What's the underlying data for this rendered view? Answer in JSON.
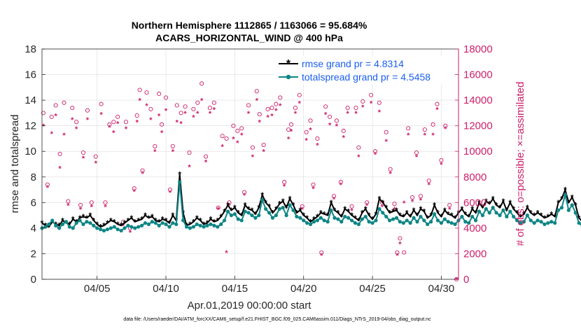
{
  "chart_data": {
    "type": "line",
    "title_line1": "Northern Hemisphere 1112865 / 1163066 = 95.684%",
    "title_line2": "ACARS_HORIZONTAL_WIND @ 400 hPa",
    "xlabel": "Apr.01,2019 00:00:00 start",
    "ylabel_left": "rmse and totalspread",
    "ylabel_right": "# of obs: o=possible; ×=assimilated",
    "x_ticks": [
      "04/05",
      "04/10",
      "04/15",
      "04/20",
      "04/25",
      "04/30"
    ],
    "y_left_ticks": [
      "0",
      "2",
      "4",
      "6",
      "8",
      "10",
      "12",
      "14",
      "16",
      "18"
    ],
    "y_right_ticks": [
      "0",
      "2000",
      "4000",
      "6000",
      "8000",
      "10000",
      "12000",
      "14000",
      "16000",
      "18000"
    ],
    "xlim_days": [
      1.0,
      31.25
    ],
    "ylim_left": [
      0,
      18
    ],
    "ylim_right": [
      0,
      18000
    ],
    "footer": "data file: /Users/raeder/DAI/ATM_forcXX/CAM6_setup/f.e21.FHIST_BGC.f09_025.CAM6assim.011/Diags_NTrS_2019-04/obs_diag_output.nc",
    "legend": [
      {
        "label": "rmse grand pr = 4.8314",
        "color": "#000000"
      },
      {
        "label": "totalspread grand pr = 4.5458",
        "color": "#0e8585"
      }
    ],
    "x_start_day": 1.0,
    "x_step_days": 0.25,
    "series": [
      {
        "name": "rmse",
        "color": "#000000",
        "values": [
          4.4,
          4.2,
          4.1,
          4.5,
          4.3,
          4.2,
          4.6,
          4.4,
          4.3,
          4.7,
          4.5,
          4.8,
          4.9,
          4.8,
          5.0,
          4.6,
          4.3,
          4.1,
          4.2,
          4.4,
          4.6,
          4.5,
          4.3,
          4.2,
          4.4,
          4.6,
          4.8,
          4.5,
          4.6,
          4.7,
          5.0,
          4.8,
          4.9,
          4.6,
          4.5,
          4.7,
          4.6,
          4.4,
          5.0,
          4.6,
          8.2,
          5.2,
          4.2,
          4.3,
          4.5,
          4.8,
          4.6,
          4.3,
          4.4,
          4.7,
          4.5,
          4.6,
          4.9,
          5.3,
          5.8,
          5.4,
          5.6,
          5.2,
          5.0,
          5.8,
          5.5,
          5.4,
          5.1,
          5.6,
          6.6,
          6.0,
          5.7,
          5.2,
          5.5,
          5.9,
          6.1,
          5.6,
          6.3,
          5.8,
          5.2,
          5.4,
          5.0,
          4.8,
          4.5,
          4.7,
          4.9,
          5.2,
          5.1,
          5.0,
          6.0,
          5.4,
          5.2,
          4.9,
          5.5,
          5.3,
          5.0,
          4.8,
          4.6,
          5.2,
          5.5,
          5.0,
          4.7,
          5.1,
          6.3,
          6.0,
          5.6,
          5.2,
          5.3,
          5.4,
          5.0,
          4.9,
          5.2,
          4.9,
          5.4,
          5.0,
          5.5,
          5.3,
          4.8,
          5.0,
          5.8,
          5.2,
          4.9,
          5.4,
          5.1,
          5.0,
          4.8,
          5.2,
          5.5,
          5.1,
          4.9,
          5.5,
          5.2,
          6.0,
          5.6,
          6.1,
          5.9,
          6.3,
          5.8,
          5.6,
          6.1,
          5.4,
          6.0,
          5.5,
          5.2,
          4.9,
          5.1,
          5.6,
          5.2,
          5.0,
          5.2,
          5.0,
          4.8,
          4.9,
          5.1,
          4.9,
          6.0,
          6.3,
          7.0,
          6.0,
          6.4,
          5.8,
          4.8,
          4.5,
          4.6,
          4.6,
          4.4,
          4.3,
          4.5,
          4.6,
          4.4,
          4.3,
          4.5,
          4.6,
          4.7,
          4.8,
          4.6,
          4.5,
          4.7,
          4.8,
          4.5,
          5.0,
          4.8,
          4.6,
          5.1,
          4.7,
          4.9,
          5.2,
          4.6,
          5.8,
          5.2,
          5.0,
          4.9,
          4.7,
          4.8,
          5.0,
          4.8,
          4.7,
          4.9,
          4.6,
          4.8,
          5.0,
          4.7,
          4.9,
          4.6,
          4.8,
          4.5,
          4.7,
          4.6,
          4.8,
          4.5,
          4.4,
          4.6,
          4.8,
          4.7,
          4.5,
          5.0,
          4.8,
          4.7,
          5.0,
          5.1,
          4.6,
          4.9,
          4.7,
          4.9,
          5.0,
          4.4,
          4.2,
          4.1,
          4.2,
          4.3
        ]
      },
      {
        "name": "totalspread",
        "color": "#0e8585",
        "values": [
          4.0,
          4.1,
          4.3,
          4.6,
          4.2,
          4.0,
          4.3,
          4.5,
          4.1,
          4.0,
          4.4,
          4.6,
          4.3,
          4.5,
          4.4,
          4.2,
          4.0,
          3.9,
          3.8,
          3.9,
          4.0,
          4.1,
          3.9,
          3.8,
          4.0,
          4.2,
          4.1,
          4.0,
          4.1,
          4.2,
          4.4,
          4.3,
          4.5,
          4.4,
          4.2,
          4.4,
          4.3,
          4.1,
          4.4,
          4.3,
          7.6,
          4.6,
          4.1,
          4.0,
          4.1,
          4.3,
          4.2,
          4.1,
          4.2,
          4.3,
          4.2,
          4.1,
          4.3,
          4.6,
          5.3,
          5.0,
          5.1,
          4.7,
          4.6,
          5.3,
          5.2,
          5.0,
          4.8,
          5.0,
          6.2,
          5.5,
          5.2,
          4.8,
          5.0,
          5.5,
          5.6,
          5.0,
          5.8,
          5.4,
          4.9,
          4.8,
          4.6,
          4.4,
          4.3,
          4.5,
          4.6,
          4.8,
          4.6,
          4.5,
          5.4,
          4.8,
          4.7,
          4.5,
          4.9,
          4.8,
          4.6,
          4.4,
          4.3,
          4.7,
          4.9,
          4.5,
          4.4,
          4.6,
          5.5,
          5.2,
          4.9,
          4.6,
          4.7,
          4.8,
          4.5,
          4.4,
          4.6,
          4.4,
          4.8,
          4.5,
          4.9,
          4.6,
          4.3,
          4.5,
          5.1,
          4.6,
          4.4,
          4.7,
          4.5,
          4.4,
          4.3,
          4.6,
          4.9,
          4.5,
          4.4,
          4.9,
          4.6,
          5.3,
          5.0,
          5.5,
          5.2,
          5.6,
          5.2,
          5.0,
          5.4,
          4.9,
          5.3,
          4.9,
          4.6,
          4.4,
          4.5,
          5.0,
          4.6,
          4.4,
          4.6,
          4.5,
          4.3,
          4.4,
          4.5,
          4.4,
          5.4,
          5.6,
          6.6,
          5.4,
          5.8,
          5.2,
          4.4,
          4.2,
          4.3,
          4.2,
          4.1,
          4.0,
          4.2,
          4.2,
          4.1,
          4.0,
          4.1,
          4.2,
          4.3,
          4.4,
          4.2,
          4.1,
          4.3,
          4.4,
          4.1,
          4.5,
          4.4,
          4.2,
          4.6,
          4.3,
          4.4,
          4.6,
          4.2,
          5.2,
          4.7,
          4.5,
          4.4,
          4.3,
          4.3,
          4.5,
          4.3,
          4.2,
          4.4,
          4.2,
          4.3,
          4.5,
          4.2,
          4.4,
          4.2,
          4.3,
          4.1,
          4.3,
          4.2,
          4.3,
          4.1,
          4.0,
          4.2,
          4.3,
          4.3,
          4.1,
          4.5,
          4.3,
          4.2,
          4.5,
          4.6,
          4.2,
          4.4,
          4.2,
          4.4,
          4.5,
          4.1,
          4.8,
          4.9,
          4.8,
          4.9
        ]
      }
    ],
    "obs_counts": [
      {
        "day": 1.1,
        "possible": 13000,
        "assimilated": 12000
      },
      {
        "day": 1.4,
        "possible": 7400,
        "assimilated": 7200
      },
      {
        "day": 1.7,
        "possible": 12700,
        "assimilated": 11400
      },
      {
        "day": 2.0,
        "possible": 13600,
        "assimilated": 12800
      },
      {
        "day": 2.3,
        "possible": 9800,
        "assimilated": 8700
      },
      {
        "day": 2.6,
        "possible": 13800,
        "assimilated": 11300
      },
      {
        "day": 2.9,
        "possible": 6100,
        "assimilated": 5800
      },
      {
        "day": 3.2,
        "possible": 13400,
        "assimilated": 12500
      },
      {
        "day": 3.5,
        "possible": 12300,
        "assimilated": 11800
      },
      {
        "day": 3.8,
        "possible": 5800,
        "assimilated": 5500
      },
      {
        "day": 4.0,
        "possible": 9900,
        "assimilated": 9500
      },
      {
        "day": 4.3,
        "possible": 13200,
        "assimilated": 12500
      },
      {
        "day": 4.6,
        "possible": 6000,
        "assimilated": 5700
      },
      {
        "day": 4.9,
        "possible": 9600,
        "assimilated": 9100
      },
      {
        "day": 5.3,
        "possible": 13700,
        "assimilated": 12900
      },
      {
        "day": 5.6,
        "possible": 6000,
        "assimilated": 5700
      },
      {
        "day": 5.9,
        "possible": 12100,
        "assimilated": 11900
      },
      {
        "day": 6.2,
        "possible": 12300,
        "assimilated": 11500
      },
      {
        "day": 6.5,
        "possible": 12700,
        "assimilated": 12200
      },
      {
        "day": 6.9,
        "possible": 4500,
        "assimilated": 4200
      },
      {
        "day": 7.1,
        "possible": 12300,
        "assimilated": 11800
      },
      {
        "day": 7.4,
        "possible": 4000,
        "assimilated": 3700
      },
      {
        "day": 7.7,
        "possible": 7100,
        "assimilated": 6900
      },
      {
        "day": 7.9,
        "possible": 12800,
        "assimilated": 12300
      },
      {
        "day": 8.1,
        "possible": 14800,
        "assimilated": 14000
      },
      {
        "day": 8.3,
        "possible": 8500,
        "assimilated": 8300
      },
      {
        "day": 8.6,
        "possible": 14600,
        "assimilated": 13600
      },
      {
        "day": 8.9,
        "possible": 13300,
        "assimilated": 12500
      },
      {
        "day": 9.2,
        "possible": 10400,
        "assimilated": 10000
      },
      {
        "day": 9.5,
        "possible": 14500,
        "assimilated": 12800
      },
      {
        "day": 9.7,
        "possible": 12100,
        "assimilated": 11500
      },
      {
        "day": 10.0,
        "possible": 14200,
        "assimilated": 13200
      },
      {
        "day": 10.3,
        "possible": 7000,
        "assimilated": 6800
      },
      {
        "day": 10.5,
        "possible": 10400,
        "assimilated": 10000
      },
      {
        "day": 10.8,
        "possible": 13600,
        "assimilated": 12300
      },
      {
        "day": 11.1,
        "possible": 13000,
        "assimilated": 12200
      },
      {
        "day": 11.4,
        "possible": 13500,
        "assimilated": 13000
      },
      {
        "day": 11.7,
        "possible": 9900,
        "assimilated": 8800
      },
      {
        "day": 12.0,
        "possible": 13300,
        "assimilated": 12700
      },
      {
        "day": 12.3,
        "possible": 13800,
        "assimilated": 13000
      },
      {
        "day": 12.6,
        "possible": 15300,
        "assimilated": 14000
      },
      {
        "day": 12.9,
        "possible": 9600,
        "assimilated": 9200
      },
      {
        "day": 13.2,
        "possible": 13400,
        "assimilated": 13000
      },
      {
        "day": 13.5,
        "possible": 13800,
        "assimilated": 13300
      },
      {
        "day": 13.8,
        "possible": 5600,
        "assimilated": 5500
      },
      {
        "day": 14.1,
        "possible": 11200,
        "assimilated": 10400
      },
      {
        "day": 14.4,
        "possible": 11000,
        "assimilated": 2100
      },
      {
        "day": 14.6,
        "possible": 6000,
        "assimilated": 5800
      },
      {
        "day": 14.9,
        "possible": 12000,
        "assimilated": 11000
      },
      {
        "day": 15.2,
        "possible": 11600,
        "assimilated": 10700
      },
      {
        "day": 15.5,
        "possible": 11800,
        "assimilated": 11300
      },
      {
        "day": 15.7,
        "possible": 6800,
        "assimilated": 6600
      },
      {
        "day": 16.0,
        "possible": 13600,
        "assimilated": 13000
      },
      {
        "day": 16.3,
        "possible": 10300,
        "assimilated": 9600
      },
      {
        "day": 16.6,
        "possible": 14700,
        "assimilated": 14000
      },
      {
        "day": 16.8,
        "possible": 12900,
        "assimilated": 12300
      },
      {
        "day": 17.1,
        "possible": 10500,
        "assimilated": 10000
      },
      {
        "day": 17.4,
        "possible": 13300,
        "assimilated": 12700
      },
      {
        "day": 17.7,
        "possible": 13400,
        "assimilated": 12800
      },
      {
        "day": 18.0,
        "possible": 13700,
        "assimilated": 13200
      },
      {
        "day": 18.3,
        "possible": 14200,
        "assimilated": 13600
      },
      {
        "day": 18.6,
        "possible": 7600,
        "assimilated": 7300
      },
      {
        "day": 18.9,
        "possible": 11700,
        "assimilated": 11000
      },
      {
        "day": 19.1,
        "possible": 12100,
        "assimilated": 11600
      },
      {
        "day": 19.4,
        "possible": 13400,
        "assimilated": 13000
      },
      {
        "day": 19.7,
        "possible": 14400,
        "assimilated": 13800
      },
      {
        "day": 19.9,
        "possible": 5700,
        "assimilated": 5500
      },
      {
        "day": 20.2,
        "possible": 11500,
        "assimilated": 10900
      },
      {
        "day": 20.5,
        "possible": 12400,
        "assimilated": 11700
      },
      {
        "day": 20.7,
        "possible": 7400,
        "assimilated": 7100
      },
      {
        "day": 21.0,
        "possible": 11000,
        "assimilated": 10500
      },
      {
        "day": 21.3,
        "possible": 2100,
        "assimilated": 1900
      },
      {
        "day": 21.6,
        "possible": 13500,
        "assimilated": 12900
      },
      {
        "day": 21.9,
        "possible": 12700,
        "assimilated": 12100
      },
      {
        "day": 22.2,
        "possible": 6500,
        "assimilated": 6300
      },
      {
        "day": 22.4,
        "possible": 12400,
        "assimilated": 12000
      },
      {
        "day": 22.7,
        "possible": 7600,
        "assimilated": 7400
      },
      {
        "day": 22.9,
        "possible": 11600,
        "assimilated": 11100
      },
      {
        "day": 23.2,
        "possible": 13400,
        "assimilated": 13000
      },
      {
        "day": 23.5,
        "possible": 5700,
        "assimilated": 5400
      },
      {
        "day": 23.8,
        "possible": 13400,
        "assimilated": 13000
      },
      {
        "day": 24.0,
        "possible": 10300,
        "assimilated": 9600
      },
      {
        "day": 24.3,
        "possible": 13900,
        "assimilated": 13500
      },
      {
        "day": 24.6,
        "possible": 6000,
        "assimilated": 5800
      },
      {
        "day": 24.9,
        "possible": 14400,
        "assimilated": 13800
      },
      {
        "day": 25.2,
        "possible": 10000,
        "assimilated": 9800
      },
      {
        "day": 25.5,
        "possible": 13800,
        "assimilated": 13100
      },
      {
        "day": 25.7,
        "possible": 6000,
        "assimilated": 5700
      },
      {
        "day": 26.0,
        "possible": 11500,
        "assimilated": 10800
      },
      {
        "day": 26.3,
        "possible": 8600,
        "assimilated": 8300
      },
      {
        "day": 26.6,
        "possible": 5900,
        "assimilated": 5500
      },
      {
        "day": 26.8,
        "possible": 2100,
        "assimilated": 1900
      },
      {
        "day": 27.0,
        "possible": 3200,
        "assimilated": 2800
      },
      {
        "day": 27.3,
        "possible": 2100,
        "assimilated": 6000
      },
      {
        "day": 27.6,
        "possible": 11800,
        "assimilated": 11300
      },
      {
        "day": 27.9,
        "possible": 6400,
        "assimilated": 6100
      },
      {
        "day": 28.2,
        "possible": 9900,
        "assimilated": 9600
      },
      {
        "day": 28.5,
        "possible": 6500,
        "assimilated": 6200
      },
      {
        "day": 28.8,
        "possible": 11700,
        "assimilated": 11300
      },
      {
        "day": 29.1,
        "possible": 7700,
        "assimilated": 7400
      },
      {
        "day": 29.4,
        "possible": 12100,
        "assimilated": 11300
      },
      {
        "day": 29.7,
        "possible": 13700,
        "assimilated": 13300
      },
      {
        "day": 30.0,
        "possible": 9300,
        "assimilated": 9000
      },
      {
        "day": 30.3,
        "possible": 12000,
        "assimilated": 11800
      },
      {
        "day": 30.6,
        "possible": 5800,
        "assimilated": 5500
      },
      {
        "day": 31.1,
        "possible": 0,
        "assimilated": 0
      }
    ]
  }
}
